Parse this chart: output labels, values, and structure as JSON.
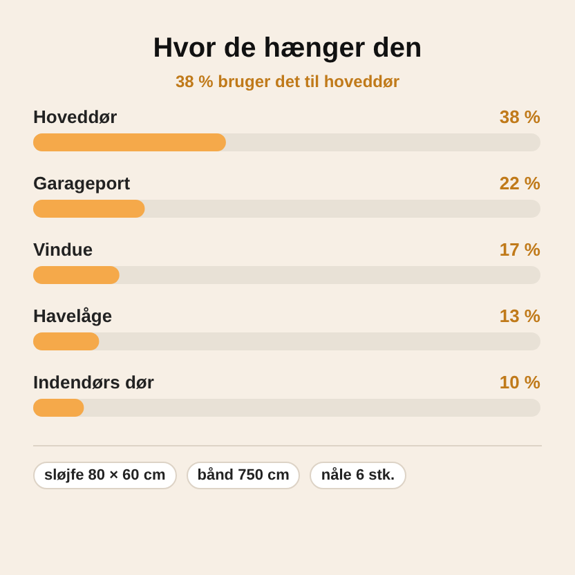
{
  "chart_data": {
    "type": "bar",
    "orientation": "horizontal",
    "title": "Hvor de hænger den",
    "subtitle": "38 % bruger det til hoveddør",
    "categories": [
      "Hoveddør",
      "Garageport",
      "Vindue",
      "Havelåge",
      "Indendørs dør"
    ],
    "values": [
      38,
      22,
      17,
      13,
      10
    ],
    "value_labels": [
      "38 %",
      "22 %",
      "17 %",
      "13 %",
      "10 %"
    ],
    "color": "#f5a94a",
    "xlim": [
      0,
      100
    ],
    "tick_labels": "y",
    "annotations": [
      "sløjfe 80 × 60 cm",
      "bånd 750 cm",
      "nåle 6 stk."
    ]
  }
}
